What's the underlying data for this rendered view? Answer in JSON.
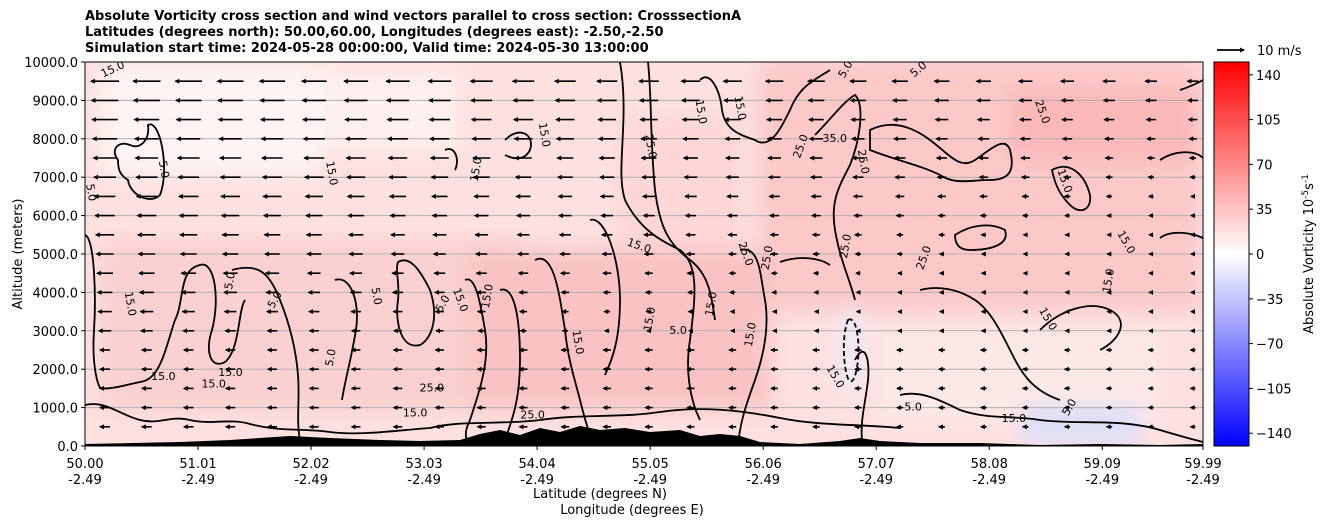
{
  "chart_data": {
    "type": "heatmap",
    "title_lines": [
      "Absolute Vorticity cross section and wind vectors parallel to cross section: CrosssectionA",
      "Latitudes (degrees north): 50.00,60.00, Longitudes (degrees east): -2.50,-2.50",
      "Simulation start time: 2024-05-28 00:00:00, Valid time: 2024-05-30 13:00:00"
    ],
    "xlabel_lines": [
      "Latitude (degrees N)",
      "Longitude (degrees E)"
    ],
    "ylabel": "Altitude (meters)",
    "x_ticks": [
      {
        "lat": "50.00",
        "lon": "-2.49",
        "value": 50.0
      },
      {
        "lat": "51.01",
        "lon": "-2.49",
        "value": 51.01
      },
      {
        "lat": "52.02",
        "lon": "-2.49",
        "value": 52.02
      },
      {
        "lat": "53.03",
        "lon": "-2.49",
        "value": 53.03
      },
      {
        "lat": "54.04",
        "lon": "-2.49",
        "value": 54.04
      },
      {
        "lat": "55.05",
        "lon": "-2.49",
        "value": 55.05
      },
      {
        "lat": "56.06",
        "lon": "-2.49",
        "value": 56.06
      },
      {
        "lat": "57.07",
        "lon": "-2.49",
        "value": 57.07
      },
      {
        "lat": "58.08",
        "lon": "-2.49",
        "value": 58.08
      },
      {
        "lat": "59.09",
        "lon": "-2.49",
        "value": 59.09
      },
      {
        "lat": "59.99",
        "lon": "-2.49",
        "value": 59.99
      }
    ],
    "xlim": [
      50.0,
      59.99
    ],
    "y_ticks": [
      {
        "label": "0.0",
        "value": 0
      },
      {
        "label": "1000.0",
        "value": 1000
      },
      {
        "label": "2000.0",
        "value": 2000
      },
      {
        "label": "3000.0",
        "value": 3000
      },
      {
        "label": "4000.0",
        "value": 4000
      },
      {
        "label": "5000.0",
        "value": 5000
      },
      {
        "label": "6000.0",
        "value": 6000
      },
      {
        "label": "7000.0",
        "value": 7000
      },
      {
        "label": "8000.0",
        "value": 8000
      },
      {
        "label": "9000.0",
        "value": 9000
      },
      {
        "label": "10000.0",
        "value": 10000
      }
    ],
    "ylim": [
      0,
      10000
    ],
    "grid": "horizontal",
    "colorbar": {
      "label": "Absolute Vorticity 10",
      "label_exponent": "-5",
      "label_unit": "s",
      "label_unit_exponent": "-1",
      "range": [
        -150,
        150
      ],
      "colors": {
        "negative": "#0000ff",
        "zero": "#ffffff",
        "positive": "#ff0000"
      },
      "ticks": [
        {
          "label": "140",
          "value": 140
        },
        {
          "label": "105",
          "value": 105
        },
        {
          "label": "70",
          "value": 70
        },
        {
          "label": "35",
          "value": 35
        },
        {
          "label": "0",
          "value": 0
        },
        {
          "label": "−35",
          "value": -35
        },
        {
          "label": "−70",
          "value": -70
        },
        {
          "label": "−105",
          "value": -105
        },
        {
          "label": "−140",
          "value": -140
        }
      ]
    },
    "quiver_key": {
      "label": "10 m/s",
      "speed": 10
    },
    "wind_vectors_direction": "leftward (southward along section)",
    "contour_levels": [
      5.0,
      15.0,
      25.0,
      35.0
    ],
    "contour_labels": [
      {
        "text": "15.0",
        "x": 50.25,
        "y": 9800,
        "rot": -25
      },
      {
        "text": "5.0",
        "x": 50.7,
        "y": 7200,
        "rot": 80
      },
      {
        "text": "5.0",
        "x": 50.05,
        "y": 6600,
        "rot": 80
      },
      {
        "text": "15.0",
        "x": 52.2,
        "y": 7100,
        "rot": 80
      },
      {
        "text": "15.0",
        "x": 53.5,
        "y": 7200,
        "rot": -80
      },
      {
        "text": "15.0",
        "x": 54.1,
        "y": 8100,
        "rot": 80
      },
      {
        "text": "25.0",
        "x": 55.05,
        "y": 7800,
        "rot": 80
      },
      {
        "text": "15.0",
        "x": 55.5,
        "y": 8700,
        "rot": 80
      },
      {
        "text": "15.0",
        "x": 55.85,
        "y": 8800,
        "rot": 80
      },
      {
        "text": "25.0",
        "x": 56.4,
        "y": 7800,
        "rot": -70
      },
      {
        "text": "35.0",
        "x": 56.7,
        "y": 8000,
        "rot": 0
      },
      {
        "text": "25.0",
        "x": 56.95,
        "y": 7400,
        "rot": 80
      },
      {
        "text": "5.0",
        "x": 56.8,
        "y": 9800,
        "rot": -60
      },
      {
        "text": "5.0",
        "x": 57.45,
        "y": 9800,
        "rot": -40
      },
      {
        "text": "25.0",
        "x": 58.55,
        "y": 8700,
        "rot": 70
      },
      {
        "text": "15.0",
        "x": 58.75,
        "y": 6900,
        "rot": 70
      },
      {
        "text": "15.0",
        "x": 59.3,
        "y": 5300,
        "rot": 60
      },
      {
        "text": "15.0",
        "x": 59.15,
        "y": 4300,
        "rot": -80
      },
      {
        "text": "15.0",
        "x": 58.6,
        "y": 3300,
        "rot": 60
      },
      {
        "text": "25.0",
        "x": 57.5,
        "y": 4900,
        "rot": -70
      },
      {
        "text": "25.0",
        "x": 56.8,
        "y": 5200,
        "rot": -80
      },
      {
        "text": "25.0",
        "x": 56.1,
        "y": 4900,
        "rot": -80
      },
      {
        "text": "25.0",
        "x": 55.9,
        "y": 5000,
        "rot": 70
      },
      {
        "text": "15.0",
        "x": 54.95,
        "y": 5200,
        "rot": 20
      },
      {
        "text": "15.0",
        "x": 50.4,
        "y": 3700,
        "rot": 80
      },
      {
        "text": "5.0",
        "x": 51.3,
        "y": 4300,
        "rot": -80
      },
      {
        "text": "5.0",
        "x": 51.7,
        "y": 3800,
        "rot": -60
      },
      {
        "text": "5.0",
        "x": 52.6,
        "y": 3900,
        "rot": 80
      },
      {
        "text": "5.0",
        "x": 53.2,
        "y": 3700,
        "rot": -60
      },
      {
        "text": "15.0",
        "x": 53.35,
        "y": 3800,
        "rot": 70
      },
      {
        "text": "15.0",
        "x": 53.6,
        "y": 3900,
        "rot": -80
      },
      {
        "text": "15.0",
        "x": 55.05,
        "y": 3300,
        "rot": -80
      },
      {
        "text": "5.0",
        "x": 55.3,
        "y": 3000,
        "rot": 0
      },
      {
        "text": "15.0",
        "x": 55.6,
        "y": 3700,
        "rot": -80
      },
      {
        "text": "15.0",
        "x": 55.95,
        "y": 2900,
        "rot": -80
      },
      {
        "text": "15.0",
        "x": 54.4,
        "y": 2700,
        "rot": 80
      },
      {
        "text": "15.0",
        "x": 50.7,
        "y": 1800,
        "rot": 0
      },
      {
        "text": "15.0",
        "x": 51.3,
        "y": 1900,
        "rot": 0
      },
      {
        "text": "15.0",
        "x": 51.15,
        "y": 1600,
        "rot": 0
      },
      {
        "text": "25.0",
        "x": 53.1,
        "y": 1500,
        "rot": 0
      },
      {
        "text": "25.0",
        "x": 54.0,
        "y": 800,
        "rot": 0
      },
      {
        "text": "15.0",
        "x": 52.95,
        "y": 850,
        "rot": 0
      },
      {
        "text": "5.0",
        "x": 52.2,
        "y": 2300,
        "rot": -80
      },
      {
        "text": "15.0",
        "x": 56.7,
        "y": 1800,
        "rot": 60
      },
      {
        "text": "5.0",
        "x": 57.4,
        "y": 1000,
        "rot": 0
      },
      {
        "text": "15.0",
        "x": 58.3,
        "y": 700,
        "rot": 0
      },
      {
        "text": "5.0",
        "x": 58.8,
        "y": 1000,
        "rot": -60
      }
    ]
  }
}
